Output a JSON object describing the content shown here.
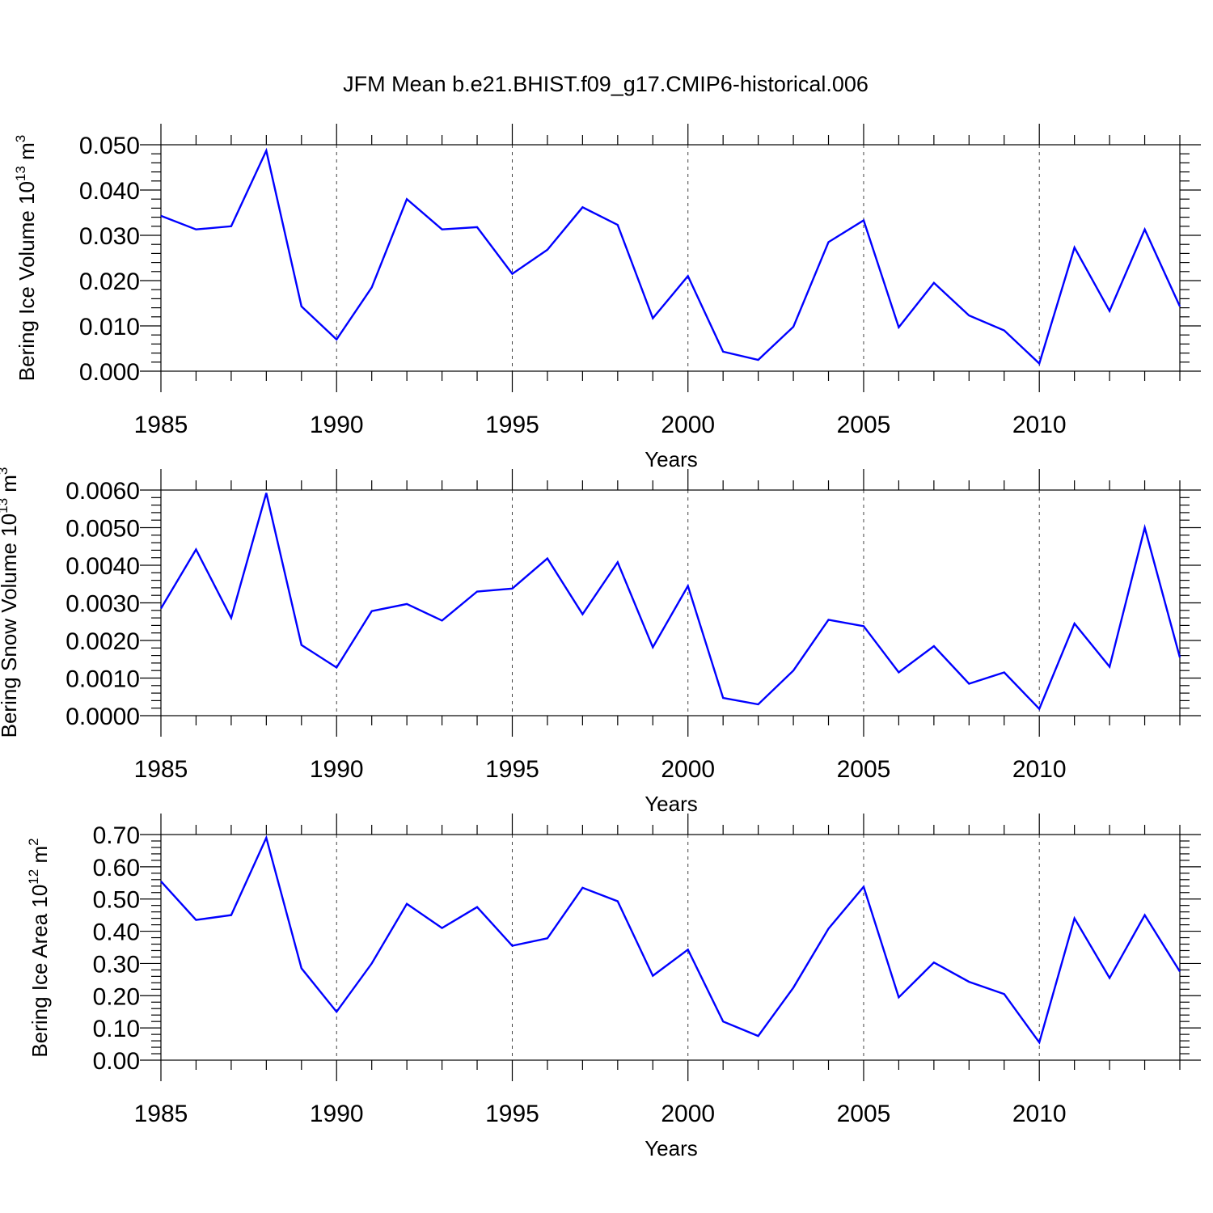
{
  "figure": {
    "title": "JFM Mean b.e21.BHIST.f09_g17.CMIP6-historical.006"
  },
  "chart_data": [
    {
      "type": "line",
      "title": "",
      "xlabel": "Years",
      "ylabel": {
        "base": "Bering Ice Volume 10",
        "exp": "13",
        "unit": " m",
        "unit_exp": "3"
      },
      "xlim": [
        1985,
        2014
      ],
      "ylim": [
        0.0,
        0.05
      ],
      "yticks": [
        "0.000",
        "0.010",
        "0.020",
        "0.030",
        "0.040",
        "0.050"
      ],
      "xticks": [
        "1985",
        "1990",
        "1995",
        "2000",
        "2005",
        "2010"
      ],
      "grid": "vertical dashed at major x ticks",
      "x": [
        1985,
        1986,
        1987,
        1988,
        1989,
        1990,
        1991,
        1992,
        1993,
        1994,
        1995,
        1996,
        1997,
        1998,
        1999,
        2000,
        2001,
        2002,
        2003,
        2004,
        2005,
        2006,
        2007,
        2008,
        2009,
        2010,
        2011,
        2012,
        2013,
        2014
      ],
      "series": [
        {
          "color": "#0000ff",
          "values": [
            0.0343,
            0.0313,
            0.032,
            0.0487,
            0.0143,
            0.007,
            0.0185,
            0.038,
            0.0313,
            0.0318,
            0.0215,
            0.0268,
            0.0362,
            0.0323,
            0.0117,
            0.021,
            0.0043,
            0.0025,
            0.0098,
            0.0285,
            0.0333,
            0.0097,
            0.0195,
            0.0123,
            0.009,
            0.0017,
            0.0273,
            0.0133,
            0.0313,
            0.0143
          ]
        }
      ]
    },
    {
      "type": "line",
      "title": "",
      "xlabel": "Years",
      "ylabel": {
        "base": "Bering Snow Volume 10",
        "exp": "13",
        "unit": " m",
        "unit_exp": "3"
      },
      "xlim": [
        1985,
        2014
      ],
      "ylim": [
        0.0,
        0.006
      ],
      "yticks": [
        "0.0000",
        "0.0010",
        "0.0020",
        "0.0030",
        "0.0040",
        "0.0050",
        "0.0060"
      ],
      "xticks": [
        "1985",
        "1990",
        "1995",
        "2000",
        "2005",
        "2010"
      ],
      "grid": "vertical dashed at major x ticks",
      "x": [
        1985,
        1986,
        1987,
        1988,
        1989,
        1990,
        1991,
        1992,
        1993,
        1994,
        1995,
        1996,
        1997,
        1998,
        1999,
        2000,
        2001,
        2002,
        2003,
        2004,
        2005,
        2006,
        2007,
        2008,
        2009,
        2010,
        2011,
        2012,
        2013,
        2014
      ],
      "series": [
        {
          "color": "#0000ff",
          "values": [
            0.00285,
            0.00442,
            0.0026,
            0.00592,
            0.00188,
            0.00128,
            0.00278,
            0.00297,
            0.00253,
            0.0033,
            0.00338,
            0.00418,
            0.0027,
            0.00408,
            0.00182,
            0.00345,
            0.00047,
            0.0003,
            0.0012,
            0.00255,
            0.00238,
            0.00115,
            0.00185,
            0.00085,
            0.00115,
            0.00018,
            0.00245,
            0.0013,
            0.005,
            0.00155
          ]
        }
      ]
    },
    {
      "type": "line",
      "title": "",
      "xlabel": "Years",
      "ylabel": {
        "base": "Bering Ice Area 10",
        "exp": "12",
        "unit": " m",
        "unit_exp": "2"
      },
      "xlim": [
        1985,
        2014
      ],
      "ylim": [
        0.0,
        0.7
      ],
      "yticks": [
        "0.00",
        "0.10",
        "0.20",
        "0.30",
        "0.40",
        "0.50",
        "0.60",
        "0.70"
      ],
      "xticks": [
        "1985",
        "1990",
        "1995",
        "2000",
        "2005",
        "2010"
      ],
      "grid": "vertical dashed at major x ticks",
      "x": [
        1985,
        1986,
        1987,
        1988,
        1989,
        1990,
        1991,
        1992,
        1993,
        1994,
        1995,
        1996,
        1997,
        1998,
        1999,
        2000,
        2001,
        2002,
        2003,
        2004,
        2005,
        2006,
        2007,
        2008,
        2009,
        2010,
        2011,
        2012,
        2013,
        2014
      ],
      "series": [
        {
          "color": "#0000ff",
          "values": [
            0.555,
            0.435,
            0.45,
            0.69,
            0.285,
            0.15,
            0.3,
            0.485,
            0.41,
            0.475,
            0.355,
            0.378,
            0.535,
            0.493,
            0.262,
            0.343,
            0.12,
            0.075,
            0.225,
            0.408,
            0.538,
            0.195,
            0.303,
            0.243,
            0.205,
            0.055,
            0.44,
            0.255,
            0.45,
            0.275
          ]
        }
      ]
    }
  ]
}
